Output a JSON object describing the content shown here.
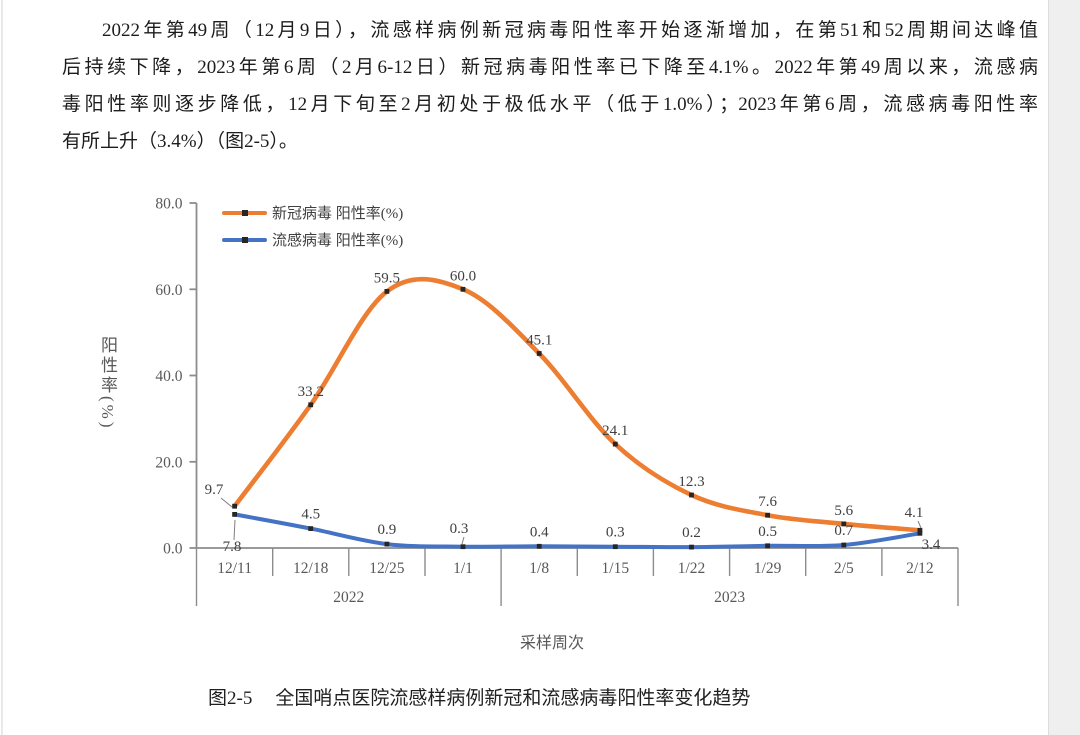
{
  "page": {
    "paragraph_lines": [
      "2022年第49周（12月9日），流感样病例新冠病毒阳性率开始逐渐增加，在第51和52周期间达峰值",
      "后持续下降，2023年第6周（2月6-12日）新冠病毒阳性率已下降至4.1%。2022年第49周以来，流感病",
      "毒阳性率则逐步降低，12月下旬至2月初处于极低水平（低于1.0%）；2023年第6周，流感病毒阳性率",
      "有所上升（3.4%）（图2-5）。"
    ],
    "caption": {
      "label": "图2-5",
      "title": "全国哨点医院流感样病例新冠和流感病毒阳性率变化趋势"
    }
  },
  "chart_data": {
    "type": "line",
    "smooth": true,
    "grid": false,
    "legend_position": "top-left",
    "xlabel": "采样周次",
    "ylabel": "阳性率(%)",
    "ylim": [
      0,
      80
    ],
    "ytick_labels": [
      "0.0",
      "20.0",
      "40.0",
      "60.0",
      "80.0"
    ],
    "categories": [
      "12/11",
      "12/18",
      "12/25",
      "1/1",
      "1/8",
      "1/15",
      "1/22",
      "1/29",
      "2/5",
      "2/12"
    ],
    "year_groups": [
      {
        "label": "2022",
        "from": 0,
        "to": 3
      },
      {
        "label": "2023",
        "from": 4,
        "to": 9
      }
    ],
    "series": [
      {
        "name": "新冠病毒 阳性率(%)",
        "color": "#ED7D31",
        "marker_color": "#262626",
        "values": [
          9.7,
          33.2,
          59.5,
          60.0,
          45.1,
          24.1,
          12.3,
          7.6,
          5.6,
          4.1
        ]
      },
      {
        "name": "流感病毒 阳性率(%)",
        "color": "#4472C4",
        "marker_color": "#262626",
        "values": [
          7.8,
          4.5,
          0.9,
          0.3,
          0.4,
          0.3,
          0.2,
          0.5,
          0.7,
          3.4
        ]
      }
    ],
    "axis_color": "#8c8c8c",
    "tick_label_color": "#595959",
    "data_label_color": "#404040"
  }
}
